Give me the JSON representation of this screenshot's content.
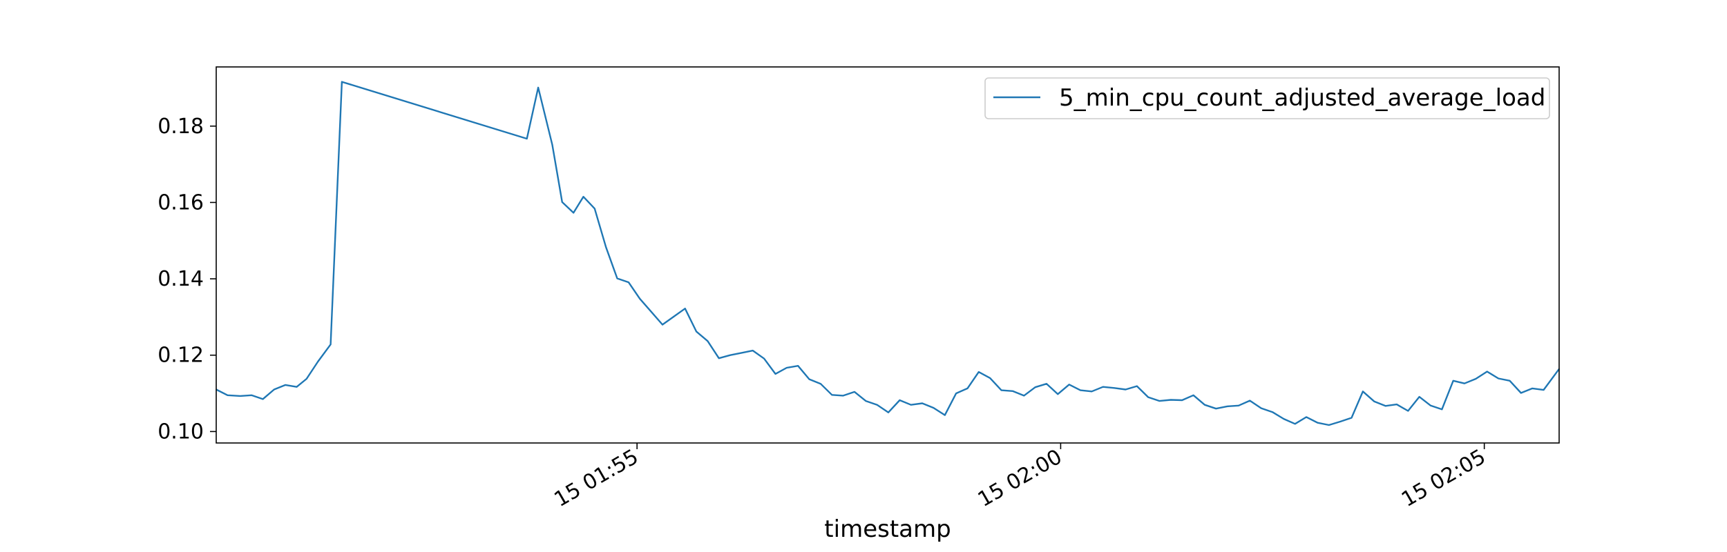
{
  "chart_data": {
    "type": "line",
    "title": "",
    "xlabel": "timestamp",
    "ylabel": "",
    "ylim": [
      0.097,
      0.1955
    ],
    "xlim": [
      "15 01:50:02",
      "15 02:05:53"
    ],
    "x_tick_labels": [
      "15 01:55",
      "15 02:00",
      "15 02:05"
    ],
    "x_ticks": [
      "15 01:55:00",
      "15 02:00:00",
      "15 02:05:00"
    ],
    "y_ticks": [
      0.1,
      0.12,
      0.14,
      0.16,
      0.18
    ],
    "y_tick_labels": [
      "0.10",
      "0.12",
      "0.14",
      "0.16",
      "0.18"
    ],
    "grid": false,
    "legend": {
      "placement": "upper-right"
    },
    "colors": {
      "series": "#1f77b4"
    },
    "series": [
      {
        "name": "5_min_cpu_count_adjusted_average_load",
        "x": [
          "15 01:50:02",
          "15 01:50:10",
          "15 01:50:19",
          "15 01:50:27",
          "15 01:50:35",
          "15 01:50:43",
          "15 01:50:51",
          "15 01:50:59",
          "15 01:51:06",
          "15 01:51:14",
          "15 01:51:23",
          "15 01:51:31",
          "15 01:53:42",
          "15 01:53:50",
          "15 01:54:00",
          "15 01:54:07",
          "15 01:54:15",
          "15 01:54:22",
          "15 01:54:30",
          "15 01:54:38",
          "15 01:54:46",
          "15 01:54:54",
          "15 01:55:02",
          "15 01:55:10",
          "15 01:55:18",
          "15 01:55:26",
          "15 01:55:34",
          "15 01:55:42",
          "15 01:55:50",
          "15 01:55:58",
          "15 01:56:06",
          "15 01:56:14",
          "15 01:56:22",
          "15 01:56:30",
          "15 01:56:38",
          "15 01:56:46",
          "15 01:56:54",
          "15 01:57:02",
          "15 01:57:10",
          "15 01:57:18",
          "15 01:57:26",
          "15 01:57:34",
          "15 01:57:42",
          "15 01:57:50",
          "15 01:57:58",
          "15 01:58:06",
          "15 01:58:14",
          "15 01:58:22",
          "15 01:58:30",
          "15 01:58:38",
          "15 01:58:46",
          "15 01:58:54",
          "15 01:59:02",
          "15 01:59:10",
          "15 01:59:18",
          "15 01:59:26",
          "15 01:59:34",
          "15 01:59:42",
          "15 01:59:50",
          "15 01:59:58",
          "15 02:00:06",
          "15 02:00:14",
          "15 02:00:22",
          "15 02:00:30",
          "15 02:00:38",
          "15 02:00:46",
          "15 02:00:54",
          "15 02:01:02",
          "15 02:01:10",
          "15 02:01:18",
          "15 02:01:26",
          "15 02:01:34",
          "15 02:01:42",
          "15 02:01:50",
          "15 02:01:58",
          "15 02:02:06",
          "15 02:02:14",
          "15 02:02:22",
          "15 02:02:30",
          "15 02:02:38",
          "15 02:02:46",
          "15 02:02:54",
          "15 02:03:02",
          "15 02:03:10",
          "15 02:03:18",
          "15 02:03:26",
          "15 02:03:34",
          "15 02:03:42",
          "15 02:03:50",
          "15 02:03:58",
          "15 02:04:06",
          "15 02:04:14",
          "15 02:04:22",
          "15 02:04:30",
          "15 02:04:38",
          "15 02:04:46",
          "15 02:04:54",
          "15 02:05:02",
          "15 02:05:10",
          "15 02:05:18",
          "15 02:05:26",
          "15 02:05:34",
          "15 02:05:42",
          "15 02:05:53"
        ],
        "values": [
          0.111,
          0.1095,
          0.1093,
          0.1095,
          0.1085,
          0.111,
          0.1122,
          0.1117,
          0.1138,
          0.1183,
          0.1228,
          0.1916,
          0.1767,
          0.1901,
          0.1751,
          0.1601,
          0.1573,
          0.1615,
          0.1584,
          0.1483,
          0.1401,
          0.1391,
          0.1348,
          0.1314,
          0.128,
          0.1301,
          0.1322,
          0.1262,
          0.1237,
          0.1192,
          0.12,
          0.1206,
          0.1212,
          0.1191,
          0.1151,
          0.1167,
          0.1172,
          0.1137,
          0.1125,
          0.1096,
          0.1094,
          0.1104,
          0.108,
          0.107,
          0.105,
          0.1082,
          0.107,
          0.1074,
          0.1062,
          0.1043,
          0.11,
          0.1113,
          0.1156,
          0.114,
          0.1108,
          0.1106,
          0.1094,
          0.1116,
          0.1125,
          0.1098,
          0.1123,
          0.1108,
          0.1105,
          0.1117,
          0.1114,
          0.111,
          0.1119,
          0.109,
          0.108,
          0.1083,
          0.1082,
          0.1095,
          0.107,
          0.106,
          0.1066,
          0.1068,
          0.1081,
          0.1061,
          0.1051,
          0.1033,
          0.102,
          0.1038,
          0.1023,
          0.1017,
          0.1026,
          0.1036,
          0.1105,
          0.1079,
          0.1067,
          0.1071,
          0.1054,
          0.1091,
          0.1068,
          0.1058,
          0.1133,
          0.1126,
          0.1138,
          0.1157,
          0.1139,
          0.1133,
          0.1101,
          0.1113,
          0.1109,
          0.1164
        ]
      }
    ]
  }
}
